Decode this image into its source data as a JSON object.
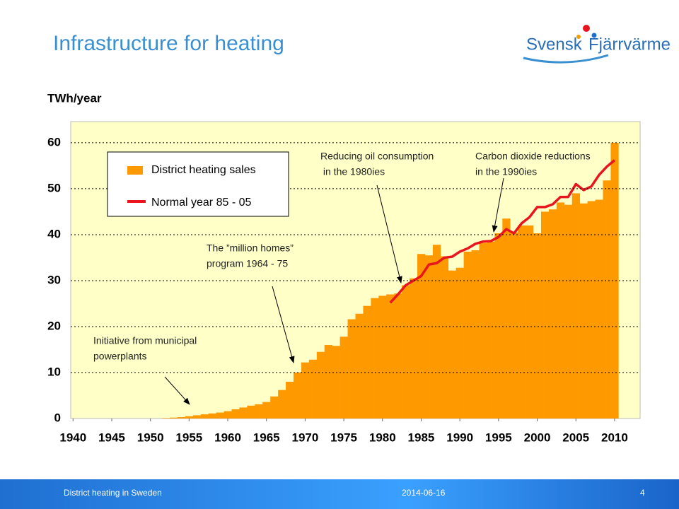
{
  "slide": {
    "title": "Infrastructure for heating",
    "logo": [
      "Svensk",
      "Fjärrvärme"
    ],
    "footer": {
      "left": "District heating in Sweden",
      "date": "2014-06-16",
      "page": "4"
    }
  },
  "chart_data": {
    "type": "bar",
    "ylabel": "TWh/year",
    "xlim": [
      1939.7,
      2013.3
    ],
    "ylim": [
      0,
      64.6
    ],
    "xticks": [
      1940,
      1945,
      1950,
      1955,
      1960,
      1965,
      1970,
      1975,
      1980,
      1985,
      1990,
      1995,
      2000,
      2005,
      2010
    ],
    "yticks": [
      0,
      10,
      20,
      30,
      40,
      50,
      60
    ],
    "grid": true,
    "legend": "upper left",
    "series": [
      {
        "name": "District heating sales",
        "type": "bar",
        "color": "#ff9900",
        "x": [
          1952,
          1953,
          1954,
          1955,
          1956,
          1957,
          1958,
          1959,
          1960,
          1961,
          1962,
          1963,
          1964,
          1965,
          1966,
          1967,
          1968,
          1969,
          1970,
          1971,
          1972,
          1973,
          1974,
          1975,
          1976,
          1977,
          1978,
          1979,
          1980,
          1981,
          1982,
          1983,
          1984,
          1985,
          1986,
          1987,
          1988,
          1989,
          1990,
          1991,
          1992,
          1993,
          1994,
          1995,
          1996,
          1997,
          1998,
          1999,
          2000,
          2001,
          2002,
          2003,
          2004,
          2005,
          2006,
          2007,
          2008,
          2009,
          2010
        ],
        "values": [
          0.1,
          0.2,
          0.3,
          0.5,
          0.7,
          0.9,
          1.1,
          1.3,
          1.6,
          2.0,
          2.4,
          2.8,
          3.1,
          3.6,
          4.8,
          6.2,
          8.0,
          10.0,
          12.2,
          12.8,
          14.5,
          16,
          15.8,
          17.8,
          21.6,
          22.8,
          24.5,
          26.2,
          26.7,
          27,
          27.2,
          29,
          30.5,
          35.8,
          35.5,
          37.8,
          35.3,
          32.2,
          32.8,
          36.3,
          36.6,
          38.2,
          38.5,
          40.3,
          43.5,
          40.5,
          42,
          42,
          40.3,
          45,
          45.5,
          47,
          46.5,
          49,
          46.8,
          47.3,
          47.6,
          51.8,
          60
        ]
      },
      {
        "name": "Normal year 85 - 05",
        "type": "line",
        "color": "#e8141e",
        "x": [
          1981,
          1982,
          1983,
          1984,
          1985,
          1986,
          1987,
          1988,
          1989,
          1990,
          1991,
          1992,
          1993,
          1994,
          1995,
          1996,
          1997,
          1998,
          1999,
          2000,
          2001,
          2002,
          2003,
          2004,
          2005,
          2006,
          2007,
          2008,
          2009,
          2010
        ],
        "values": [
          25.2,
          27,
          29,
          30,
          31,
          33.5,
          33.8,
          35,
          35.2,
          36.3,
          37,
          38,
          38.5,
          38.6,
          39.5,
          41.2,
          40.3,
          42.5,
          43.8,
          46,
          46,
          46.6,
          48.2,
          48.2,
          51,
          49.7,
          50.5,
          53,
          54.8,
          56.2
        ]
      }
    ],
    "annotations": [
      {
        "lines": [
          "Initiative from municipal",
          "powerplants"
        ]
      },
      {
        "lines": [
          "The ”million homes”",
          "program 1964 - 75"
        ]
      },
      {
        "lines": [
          "Reducing oil consumption",
          " in the 1980ies"
        ]
      },
      {
        "lines": [
          "Carbon dioxide reductions",
          "in the 1990ies"
        ]
      }
    ]
  }
}
